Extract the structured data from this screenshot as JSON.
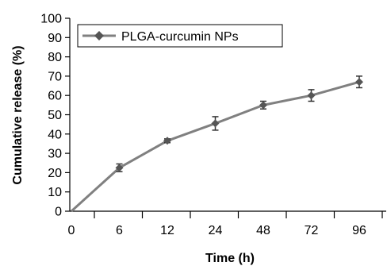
{
  "chart_data": {
    "type": "line",
    "xlabel": "Time (h)",
    "ylabel": "Cumulative release (%)",
    "categories": [
      "0",
      "6",
      "12",
      "24",
      "48",
      "72",
      "96"
    ],
    "ylim": [
      0,
      100
    ],
    "yticks": [
      0,
      10,
      20,
      30,
      40,
      50,
      60,
      70,
      80,
      90,
      100
    ],
    "grid": false,
    "legend_position": "top-left",
    "series": [
      {
        "name": "PLGA-curcumin NPs",
        "color": "#808080",
        "values": [
          0,
          22.5,
          36.5,
          45.5,
          55,
          60,
          67
        ],
        "errors": [
          0,
          2,
          1,
          3.5,
          2,
          3,
          3
        ]
      }
    ]
  }
}
